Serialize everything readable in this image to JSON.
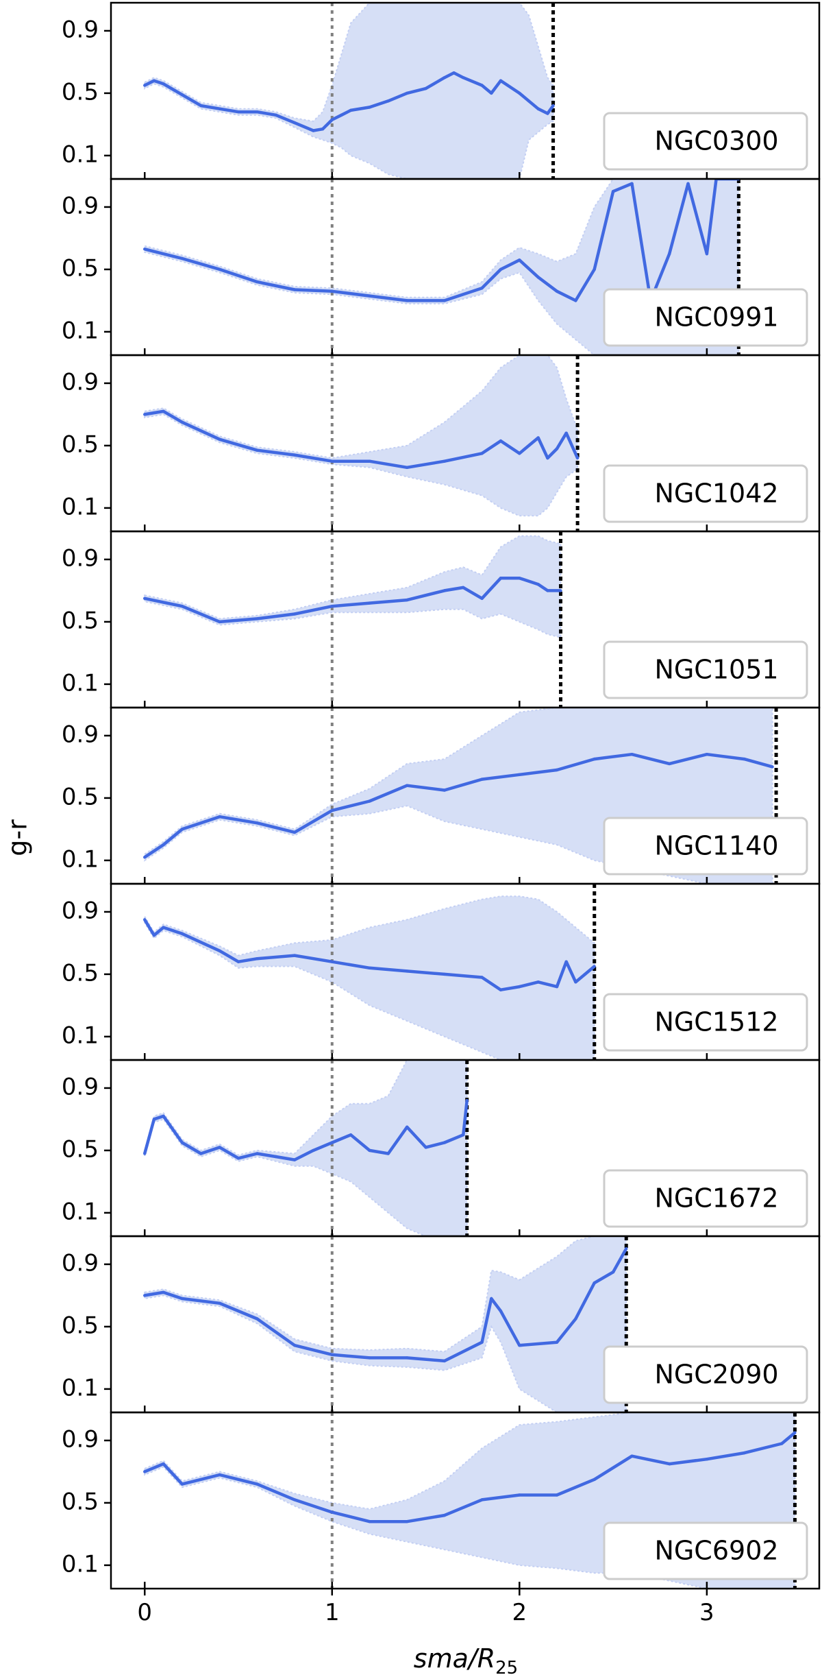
{
  "chart_data": {
    "type": "line",
    "ylabel": "g-r",
    "xlabel": "sma/R",
    "xlabel_subscript": "25",
    "xlim": [
      -0.18,
      3.6
    ],
    "ylim": [
      -0.05,
      1.08
    ],
    "x_ticks": [
      0,
      1,
      2,
      3
    ],
    "x_tick_labels": [
      "0",
      "1",
      "2",
      "3"
    ],
    "y_ticks": [
      0.1,
      0.5,
      0.9
    ],
    "y_tick_labels": [
      "0.1",
      "0.5",
      "0.9"
    ],
    "reference_line_x": 1.0,
    "legend_placement": "lower-right",
    "colors": {
      "line": "#4169E1",
      "band": "#D6DFF6",
      "band_edge": "#C3CFF3",
      "reference_line": "#808080",
      "limit_line": "#000000"
    },
    "panels": [
      {
        "name": "NGC0300",
        "limit_x": 2.18,
        "x": [
          0,
          0.05,
          0.1,
          0.2,
          0.3,
          0.4,
          0.5,
          0.6,
          0.7,
          0.8,
          0.9,
          0.95,
          1.0,
          1.05,
          1.1,
          1.2,
          1.3,
          1.4,
          1.5,
          1.6,
          1.65,
          1.7,
          1.8,
          1.85,
          1.9,
          2.0,
          2.05,
          2.1,
          2.15,
          2.18
        ],
        "y": [
          0.55,
          0.58,
          0.56,
          0.49,
          0.42,
          0.4,
          0.38,
          0.38,
          0.36,
          0.31,
          0.26,
          0.27,
          0.33,
          0.36,
          0.39,
          0.41,
          0.45,
          0.5,
          0.53,
          0.6,
          0.63,
          0.6,
          0.55,
          0.5,
          0.58,
          0.5,
          0.45,
          0.4,
          0.37,
          0.42
        ],
        "lower": [
          0.53,
          0.56,
          0.54,
          0.47,
          0.4,
          0.38,
          0.36,
          0.36,
          0.34,
          0.28,
          0.22,
          0.2,
          0.18,
          0.15,
          0.1,
          0.05,
          -0.02,
          -0.05,
          -0.05,
          -0.05,
          -0.05,
          -0.05,
          -0.05,
          -0.05,
          -0.05,
          -0.05,
          0.2,
          0.25,
          0.3,
          0.32
        ],
        "upper": [
          0.57,
          0.6,
          0.58,
          0.51,
          0.44,
          0.42,
          0.4,
          0.4,
          0.38,
          0.34,
          0.32,
          0.38,
          0.55,
          0.75,
          0.95,
          1.08,
          1.08,
          1.08,
          1.08,
          1.08,
          1.08,
          1.08,
          1.08,
          1.08,
          1.08,
          1.08,
          1.0,
          0.8,
          0.6,
          0.55
        ]
      },
      {
        "name": "NGC0991",
        "limit_x": 3.17,
        "x": [
          0,
          0.2,
          0.4,
          0.6,
          0.8,
          1.0,
          1.2,
          1.4,
          1.6,
          1.8,
          1.9,
          2.0,
          2.1,
          2.2,
          2.3,
          2.4,
          2.5,
          2.6,
          2.7,
          2.8,
          2.9,
          3.0,
          3.05,
          3.17
        ],
        "y": [
          0.63,
          0.57,
          0.5,
          0.42,
          0.37,
          0.36,
          0.33,
          0.3,
          0.3,
          0.38,
          0.5,
          0.56,
          0.45,
          0.36,
          0.3,
          0.5,
          1.0,
          1.05,
          0.3,
          0.6,
          1.05,
          0.6,
          1.08,
          1.08
        ],
        "lower": [
          0.61,
          0.55,
          0.48,
          0.4,
          0.35,
          0.34,
          0.31,
          0.28,
          0.28,
          0.34,
          0.44,
          0.48,
          0.3,
          0.15,
          0.05,
          -0.05,
          -0.05,
          -0.05,
          -0.05,
          -0.05,
          -0.05,
          -0.05,
          -0.05,
          -0.05
        ],
        "upper": [
          0.65,
          0.59,
          0.52,
          0.44,
          0.39,
          0.38,
          0.35,
          0.32,
          0.32,
          0.42,
          0.56,
          0.64,
          0.6,
          0.55,
          0.6,
          0.9,
          1.08,
          1.08,
          1.08,
          1.08,
          1.08,
          1.08,
          1.08,
          1.08
        ]
      },
      {
        "name": "NGC1042",
        "limit_x": 2.31,
        "x": [
          0,
          0.1,
          0.2,
          0.4,
          0.6,
          0.8,
          1.0,
          1.2,
          1.4,
          1.6,
          1.8,
          1.9,
          2.0,
          2.1,
          2.15,
          2.2,
          2.25,
          2.31
        ],
        "y": [
          0.7,
          0.72,
          0.65,
          0.54,
          0.47,
          0.44,
          0.4,
          0.4,
          0.36,
          0.4,
          0.45,
          0.53,
          0.45,
          0.55,
          0.42,
          0.48,
          0.58,
          0.42
        ],
        "lower": [
          0.68,
          0.7,
          0.63,
          0.52,
          0.45,
          0.42,
          0.38,
          0.36,
          0.3,
          0.25,
          0.18,
          0.1,
          0.05,
          0.05,
          0.1,
          0.2,
          0.3,
          0.35
        ],
        "upper": [
          0.72,
          0.74,
          0.67,
          0.56,
          0.49,
          0.46,
          0.42,
          0.46,
          0.5,
          0.65,
          0.85,
          1.0,
          1.08,
          1.08,
          1.08,
          1.0,
          0.8,
          0.6
        ]
      },
      {
        "name": "NGC1051",
        "limit_x": 2.22,
        "x": [
          0,
          0.2,
          0.4,
          0.6,
          0.8,
          1.0,
          1.2,
          1.4,
          1.6,
          1.7,
          1.8,
          1.9,
          2.0,
          2.1,
          2.15,
          2.22
        ],
        "y": [
          0.65,
          0.6,
          0.5,
          0.52,
          0.55,
          0.6,
          0.62,
          0.64,
          0.7,
          0.72,
          0.65,
          0.78,
          0.78,
          0.74,
          0.7,
          0.7
        ],
        "lower": [
          0.63,
          0.58,
          0.48,
          0.5,
          0.52,
          0.56,
          0.56,
          0.56,
          0.58,
          0.58,
          0.52,
          0.55,
          0.5,
          0.45,
          0.42,
          0.4
        ],
        "upper": [
          0.67,
          0.62,
          0.52,
          0.54,
          0.58,
          0.64,
          0.68,
          0.72,
          0.82,
          0.85,
          0.8,
          0.98,
          1.05,
          1.05,
          1.02,
          1.0
        ]
      },
      {
        "name": "NGC1140",
        "limit_x": 3.37,
        "x": [
          0,
          0.1,
          0.2,
          0.4,
          0.6,
          0.8,
          1.0,
          1.2,
          1.4,
          1.6,
          1.8,
          2.0,
          2.2,
          2.4,
          2.6,
          2.8,
          3.0,
          3.2,
          3.35
        ],
        "y": [
          0.12,
          0.2,
          0.3,
          0.38,
          0.34,
          0.28,
          0.42,
          0.48,
          0.58,
          0.55,
          0.62,
          0.65,
          0.68,
          0.75,
          0.78,
          0.72,
          0.78,
          0.75,
          0.7
        ],
        "lower": [
          0.1,
          0.18,
          0.28,
          0.36,
          0.32,
          0.26,
          0.38,
          0.4,
          0.45,
          0.35,
          0.3,
          0.25,
          0.2,
          0.1,
          0.05,
          0.0,
          -0.05,
          -0.05,
          -0.05
        ],
        "upper": [
          0.14,
          0.22,
          0.32,
          0.4,
          0.36,
          0.3,
          0.46,
          0.56,
          0.72,
          0.75,
          0.9,
          1.05,
          1.08,
          1.08,
          1.08,
          1.08,
          1.08,
          1.08,
          1.08
        ]
      },
      {
        "name": "NGC1512",
        "limit_x": 2.4,
        "x": [
          0,
          0.05,
          0.1,
          0.2,
          0.4,
          0.5,
          0.6,
          0.8,
          1.0,
          1.2,
          1.4,
          1.6,
          1.8,
          1.9,
          2.0,
          2.1,
          2.2,
          2.25,
          2.3,
          2.35,
          2.4
        ],
        "y": [
          0.85,
          0.75,
          0.8,
          0.76,
          0.65,
          0.58,
          0.6,
          0.62,
          0.58,
          0.54,
          0.52,
          0.5,
          0.48,
          0.4,
          0.42,
          0.45,
          0.42,
          0.58,
          0.45,
          0.5,
          0.55
        ],
        "lower": [
          0.83,
          0.73,
          0.78,
          0.74,
          0.62,
          0.54,
          0.55,
          0.55,
          0.45,
          0.3,
          0.2,
          0.1,
          0.0,
          -0.05,
          -0.05,
          -0.05,
          -0.05,
          -0.05,
          -0.05,
          -0.05,
          -0.05
        ],
        "upper": [
          0.87,
          0.77,
          0.82,
          0.78,
          0.68,
          0.62,
          0.65,
          0.7,
          0.72,
          0.8,
          0.85,
          0.92,
          0.98,
          1.0,
          1.0,
          0.98,
          0.9,
          0.85,
          0.8,
          0.75,
          0.7
        ]
      },
      {
        "name": "NGC1672",
        "limit_x": 1.72,
        "x": [
          0,
          0.05,
          0.1,
          0.2,
          0.3,
          0.4,
          0.5,
          0.6,
          0.7,
          0.8,
          0.9,
          1.0,
          1.1,
          1.2,
          1.3,
          1.4,
          1.5,
          1.6,
          1.7,
          1.72
        ],
        "y": [
          0.48,
          0.7,
          0.72,
          0.55,
          0.48,
          0.52,
          0.45,
          0.48,
          0.46,
          0.44,
          0.5,
          0.55,
          0.6,
          0.5,
          0.48,
          0.65,
          0.52,
          0.55,
          0.6,
          0.82
        ],
        "lower": [
          0.46,
          0.68,
          0.7,
          0.53,
          0.46,
          0.5,
          0.43,
          0.46,
          0.43,
          0.4,
          0.4,
          0.35,
          0.3,
          0.2,
          0.1,
          0.0,
          -0.05,
          -0.05,
          -0.05,
          -0.05
        ],
        "upper": [
          0.5,
          0.72,
          0.74,
          0.57,
          0.5,
          0.54,
          0.47,
          0.5,
          0.49,
          0.48,
          0.6,
          0.72,
          0.8,
          0.8,
          0.85,
          1.08,
          1.08,
          1.08,
          1.08,
          1.08
        ]
      },
      {
        "name": "NGC2090",
        "limit_x": 2.57,
        "x": [
          0,
          0.1,
          0.2,
          0.4,
          0.6,
          0.8,
          1.0,
          1.2,
          1.4,
          1.6,
          1.8,
          1.85,
          1.9,
          2.0,
          2.2,
          2.3,
          2.4,
          2.5,
          2.57
        ],
        "y": [
          0.7,
          0.72,
          0.68,
          0.65,
          0.55,
          0.38,
          0.32,
          0.3,
          0.3,
          0.28,
          0.4,
          0.68,
          0.6,
          0.38,
          0.4,
          0.55,
          0.78,
          0.85,
          1.0
        ],
        "lower": [
          0.68,
          0.7,
          0.66,
          0.63,
          0.52,
          0.34,
          0.28,
          0.25,
          0.24,
          0.22,
          0.3,
          0.5,
          0.4,
          0.1,
          -0.05,
          -0.05,
          -0.05,
          -0.05,
          -0.05
        ],
        "upper": [
          0.72,
          0.74,
          0.7,
          0.67,
          0.58,
          0.42,
          0.36,
          0.35,
          0.36,
          0.34,
          0.5,
          0.86,
          0.85,
          0.8,
          0.95,
          1.05,
          1.08,
          1.08,
          1.08
        ]
      },
      {
        "name": "NGC6902",
        "limit_x": 3.47,
        "x": [
          0,
          0.1,
          0.2,
          0.4,
          0.6,
          0.8,
          1.0,
          1.2,
          1.4,
          1.6,
          1.8,
          2.0,
          2.2,
          2.4,
          2.6,
          2.8,
          3.0,
          3.2,
          3.4,
          3.47
        ],
        "y": [
          0.7,
          0.75,
          0.62,
          0.68,
          0.62,
          0.52,
          0.44,
          0.38,
          0.38,
          0.42,
          0.52,
          0.55,
          0.55,
          0.65,
          0.8,
          0.75,
          0.78,
          0.82,
          0.88,
          0.95
        ],
        "lower": [
          0.68,
          0.73,
          0.6,
          0.66,
          0.6,
          0.48,
          0.38,
          0.3,
          0.25,
          0.2,
          0.15,
          0.1,
          0.08,
          0.05,
          0.05,
          0.0,
          -0.05,
          -0.05,
          -0.05,
          -0.05
        ],
        "upper": [
          0.72,
          0.77,
          0.64,
          0.7,
          0.64,
          0.56,
          0.5,
          0.46,
          0.52,
          0.64,
          0.85,
          1.0,
          1.02,
          1.05,
          1.08,
          1.08,
          1.08,
          1.08,
          1.08,
          1.08
        ]
      }
    ]
  }
}
